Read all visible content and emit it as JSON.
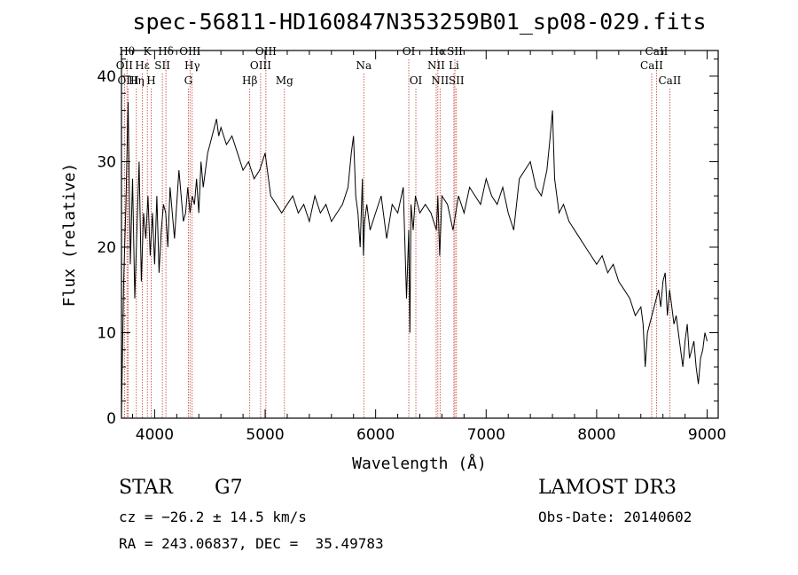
{
  "chart_data": {
    "type": "line",
    "title": "spec-56811-HD160847N353259B01_sp08-029.fits",
    "xlabel": "Wavelength (Å)",
    "ylabel": "Flux (relative)",
    "xlim": [
      3700,
      9100
    ],
    "ylim": [
      0,
      43
    ],
    "xticks": [
      4000,
      5000,
      6000,
      7000,
      8000,
      9000
    ],
    "yticks": [
      0,
      10,
      20,
      30,
      40
    ],
    "grid": false,
    "series": [
      {
        "x": [
          3700,
          3720,
          3740,
          3760,
          3780,
          3800,
          3820,
          3840,
          3860,
          3880,
          3900,
          3920,
          3940,
          3960,
          3980,
          4000,
          4020,
          4040,
          4060,
          4080,
          4100,
          4120,
          4140,
          4160,
          4180,
          4200,
          4220,
          4240,
          4260,
          4280,
          4300,
          4320,
          4340,
          4360,
          4380,
          4400,
          4420,
          4440,
          4460,
          4480,
          4500,
          4520,
          4540,
          4560,
          4580,
          4600,
          4650,
          4700,
          4750,
          4800,
          4850,
          4900,
          4950,
          5000,
          5050,
          5100,
          5150,
          5200,
          5250,
          5300,
          5350,
          5400,
          5450,
          5500,
          5550,
          5600,
          5650,
          5700,
          5750,
          5780,
          5800,
          5820,
          5840,
          5860,
          5880,
          5890,
          5900,
          5920,
          5950,
          6000,
          6050,
          6100,
          6150,
          6200,
          6250,
          6280,
          6300,
          6310,
          6320,
          6340,
          6360,
          6400,
          6450,
          6500,
          6550,
          6563,
          6580,
          6600,
          6650,
          6700,
          6750,
          6800,
          6850,
          6900,
          6950,
          7000,
          7050,
          7100,
          7150,
          7200,
          7250,
          7300,
          7350,
          7400,
          7450,
          7500,
          7550,
          7580,
          7600,
          7620,
          7640,
          7660,
          7700,
          7750,
          7800,
          7850,
          7900,
          7950,
          8000,
          8050,
          8100,
          8150,
          8200,
          8250,
          8300,
          8350,
          8400,
          8420,
          8440,
          8460,
          8480,
          8500,
          8520,
          8540,
          8560,
          8580,
          8600,
          8620,
          8640,
          8660,
          8680,
          8700,
          8720,
          8740,
          8760,
          8780,
          8800,
          8820,
          8840,
          8860,
          8880,
          8900,
          8920,
          8940,
          8960,
          8980,
          9000
        ],
        "values": [
          0.5,
          16,
          25,
          37,
          18,
          28,
          14,
          22,
          30,
          16,
          24,
          21,
          26,
          19,
          24,
          18,
          26,
          17,
          22,
          25,
          24,
          20,
          27,
          24,
          21,
          25,
          29,
          26,
          23,
          24,
          27,
          24,
          26,
          25,
          28,
          24,
          30,
          27,
          29,
          31,
          32,
          33,
          34,
          35,
          33,
          34,
          32,
          33,
          31,
          29,
          30,
          28,
          29,
          31,
          26,
          25,
          24,
          25,
          26,
          24,
          25,
          23,
          26,
          24,
          25,
          23,
          24,
          25,
          27,
          31,
          33,
          26,
          24,
          20,
          28,
          19,
          23,
          25,
          22,
          24,
          26,
          21,
          25,
          24,
          27,
          14,
          22,
          10,
          25,
          22,
          26,
          24,
          25,
          24,
          22,
          26,
          19,
          26,
          25,
          22,
          26,
          24,
          27,
          26,
          25,
          28,
          26,
          25,
          27,
          24,
          22,
          28,
          29,
          30,
          27,
          26,
          29,
          33,
          36,
          28,
          26,
          24,
          25,
          23,
          22,
          21,
          20,
          19,
          18,
          19,
          17,
          18,
          16,
          15,
          14,
          12,
          13,
          11,
          6,
          10,
          11,
          12,
          13,
          14,
          15,
          13,
          16,
          17,
          12,
          15,
          13,
          11,
          12,
          10,
          8,
          6,
          9,
          11,
          7,
          8,
          9,
          6,
          4,
          7,
          8,
          10,
          9
        ]
      }
    ],
    "annotations": [
      {
        "label": "OII",
        "x": 3727,
        "row": 2
      },
      {
        "label": "Hθ",
        "x": 3750,
        "row": 1
      },
      {
        "label": "OIII",
        "x": 3760,
        "row": 3
      },
      {
        "label": "Hη",
        "x": 3835,
        "row": 3
      },
      {
        "label": "Hε",
        "x": 3889,
        "row": 2
      },
      {
        "label": "K",
        "x": 3934,
        "row": 1
      },
      {
        "label": "H",
        "x": 3969,
        "row": 3
      },
      {
        "label": "SII",
        "x": 4070,
        "row": 2
      },
      {
        "label": "Hδ",
        "x": 4102,
        "row": 1
      },
      {
        "label": "OIII",
        "x": 4320,
        "row": 1
      },
      {
        "label": "Hγ",
        "x": 4340,
        "row": 2
      },
      {
        "label": "G",
        "x": 4305,
        "row": 3
      },
      {
        "label": "Hβ",
        "x": 4861,
        "row": 3
      },
      {
        "label": "OIII",
        "x": 4959,
        "row": 2
      },
      {
        "label": "OIII",
        "x": 5007,
        "row": 1
      },
      {
        "label": "Mg",
        "x": 5175,
        "row": 3
      },
      {
        "label": "Na",
        "x": 5893,
        "row": 2
      },
      {
        "label": "OI",
        "x": 6300,
        "row": 1
      },
      {
        "label": "OI",
        "x": 6364,
        "row": 3
      },
      {
        "label": "Hα",
        "x": 6563,
        "row": 1
      },
      {
        "label": "NII",
        "x": 6548,
        "row": 2
      },
      {
        "label": "NII",
        "x": 6583,
        "row": 3
      },
      {
        "label": "SII",
        "x": 6717,
        "row": 1
      },
      {
        "label": "Li",
        "x": 6708,
        "row": 2
      },
      {
        "label": "SII",
        "x": 6731,
        "row": 3
      },
      {
        "label": "CaII",
        "x": 8498,
        "row": 2
      },
      {
        "label": "CaII",
        "x": 8542,
        "row": 1
      },
      {
        "label": "CaII",
        "x": 8662,
        "row": 3
      }
    ]
  },
  "info": {
    "class_label": "STAR",
    "subclass": "G7",
    "survey": "LAMOST DR3",
    "cz": "cz = −26.2 ± 14.5 km/s",
    "obs_date": "Obs-Date: 20140602",
    "radec": "RA = 243.06837, DEC =  35.49783"
  }
}
